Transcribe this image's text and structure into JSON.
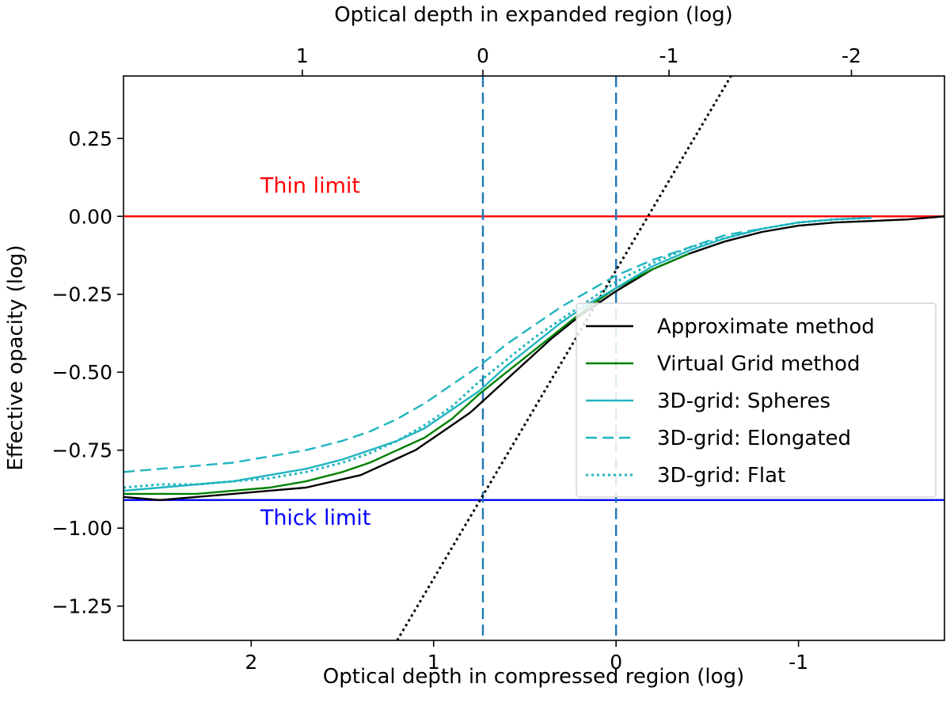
{
  "chart_data": {
    "type": "line",
    "xlabel": "Optical depth in compressed region (log)",
    "ylabel": "Effective opacity (log)",
    "x2label": "Optical depth in expanded region (log)",
    "xlim": [
      2.7,
      -1.8
    ],
    "ylim": [
      -1.36,
      0.45
    ],
    "x_ticks": [
      {
        "value": 2,
        "label": "2"
      },
      {
        "value": 1,
        "label": "1"
      },
      {
        "value": 0,
        "label": "0"
      },
      {
        "value": -1,
        "label": "-1"
      }
    ],
    "x2_ticks": [
      {
        "value": 1.72,
        "label": "1"
      },
      {
        "value": 0.73,
        "label": "0"
      },
      {
        "value": -0.29,
        "label": "-1"
      },
      {
        "value": -1.29,
        "label": "-2"
      }
    ],
    "y_ticks": [
      {
        "value": 0.25,
        "label": "0.25"
      },
      {
        "value": 0.0,
        "label": "0.00"
      },
      {
        "value": -0.25,
        "label": "−0.25"
      },
      {
        "value": -0.5,
        "label": "−0.50"
      },
      {
        "value": -0.75,
        "label": "−0.75"
      },
      {
        "value": -1.0,
        "label": "−1.00"
      },
      {
        "value": -1.25,
        "label": "−1.25"
      }
    ],
    "grid": false,
    "legend_position": "center-right",
    "series": [
      {
        "name": "Approximate method",
        "color": "#000000",
        "dash": "solid",
        "x": [
          2.7,
          2.5,
          2.3,
          2.1,
          1.9,
          1.7,
          1.55,
          1.4,
          1.25,
          1.1,
          0.95,
          0.8,
          0.65,
          0.5,
          0.35,
          0.2,
          0.0,
          -0.2,
          -0.4,
          -0.6,
          -0.8,
          -1.0,
          -1.2,
          -1.4,
          -1.6,
          -1.8
        ],
        "y": [
          -0.9,
          -0.91,
          -0.9,
          -0.89,
          -0.88,
          -0.87,
          -0.85,
          -0.83,
          -0.79,
          -0.75,
          -0.69,
          -0.63,
          -0.55,
          -0.47,
          -0.39,
          -0.32,
          -0.24,
          -0.17,
          -0.12,
          -0.08,
          -0.05,
          -0.03,
          -0.02,
          -0.015,
          -0.01,
          0.0
        ]
      },
      {
        "name": "Virtual Grid method",
        "color": "#008000",
        "dash": "solid",
        "x": [
          2.7,
          2.5,
          2.3,
          2.1,
          1.9,
          1.7,
          1.5,
          1.35,
          1.2,
          1.05,
          0.9,
          0.75,
          0.6,
          0.45,
          0.3,
          0.15,
          0.0,
          -0.2,
          -0.4
        ],
        "y": [
          -0.89,
          -0.89,
          -0.89,
          -0.88,
          -0.87,
          -0.85,
          -0.82,
          -0.79,
          -0.75,
          -0.71,
          -0.65,
          -0.57,
          -0.5,
          -0.43,
          -0.36,
          -0.29,
          -0.23,
          -0.17,
          -0.12
        ]
      },
      {
        "name": "3D-grid: Spheres",
        "color": "#20b5c0",
        "dash": "solid",
        "x": [
          2.7,
          2.5,
          2.3,
          2.1,
          1.9,
          1.7,
          1.5,
          1.35,
          1.2,
          1.05,
          0.9,
          0.75,
          0.6,
          0.45,
          0.3,
          0.15,
          0.0,
          -0.2,
          -0.4,
          -0.6,
          -0.8,
          -1.0,
          -1.2,
          -1.4
        ],
        "y": [
          -0.88,
          -0.87,
          -0.86,
          -0.85,
          -0.83,
          -0.81,
          -0.78,
          -0.75,
          -0.72,
          -0.68,
          -0.62,
          -0.56,
          -0.48,
          -0.41,
          -0.34,
          -0.28,
          -0.23,
          -0.16,
          -0.11,
          -0.07,
          -0.04,
          -0.02,
          -0.01,
          -0.005
        ]
      },
      {
        "name": "3D-grid: Elongated",
        "color": "#20b5c0",
        "dash": "dashed",
        "x": [
          2.7,
          2.5,
          2.3,
          2.1,
          1.9,
          1.7,
          1.5,
          1.35,
          1.2,
          1.05,
          0.9,
          0.75,
          0.6,
          0.45,
          0.3,
          0.15,
          0.0,
          -0.2,
          -0.4,
          -0.6,
          -0.8
        ],
        "y": [
          -0.82,
          -0.81,
          -0.8,
          -0.79,
          -0.77,
          -0.75,
          -0.72,
          -0.69,
          -0.65,
          -0.6,
          -0.54,
          -0.48,
          -0.41,
          -0.35,
          -0.29,
          -0.24,
          -0.19,
          -0.14,
          -0.1,
          -0.06,
          -0.04
        ]
      },
      {
        "name": "3D-grid: Flat",
        "color": "#20b5c0",
        "dash": "dotted",
        "x": [
          2.7,
          2.5,
          2.3,
          2.1,
          1.9,
          1.7,
          1.5,
          1.35,
          1.2,
          1.05,
          0.9,
          0.75,
          0.6,
          0.45,
          0.3,
          0.15,
          0.0,
          -0.2,
          -0.4,
          -0.6,
          -0.8,
          -1.0,
          -1.2,
          -1.4
        ],
        "y": [
          -0.87,
          -0.86,
          -0.86,
          -0.85,
          -0.84,
          -0.82,
          -0.79,
          -0.76,
          -0.72,
          -0.67,
          -0.61,
          -0.53,
          -0.46,
          -0.39,
          -0.33,
          -0.27,
          -0.21,
          -0.15,
          -0.1,
          -0.07,
          -0.04,
          -0.02,
          -0.01,
          -0.005
        ]
      }
    ],
    "reference_lines": [
      {
        "kind": "horizontal",
        "y": 0.0,
        "color": "#ff0000",
        "dash": "solid",
        "label": "Thin limit",
        "label_x": 1.95,
        "label_y": 0.075
      },
      {
        "kind": "horizontal",
        "y": -0.91,
        "color": "#0000ff",
        "dash": "solid",
        "label": "Thick limit",
        "label_x": 1.95,
        "label_y": -0.99
      },
      {
        "kind": "vertical",
        "x": 0.73,
        "color": "#1f77b4",
        "dash": "dashed"
      },
      {
        "kind": "vertical",
        "x": 0.0,
        "color": "#1f77b4",
        "dash": "dashed"
      },
      {
        "kind": "segment",
        "x1": 1.2,
        "y1": -1.36,
        "x2": -0.63,
        "y2": 0.45,
        "color": "#000000",
        "dash": "dotted"
      }
    ]
  }
}
